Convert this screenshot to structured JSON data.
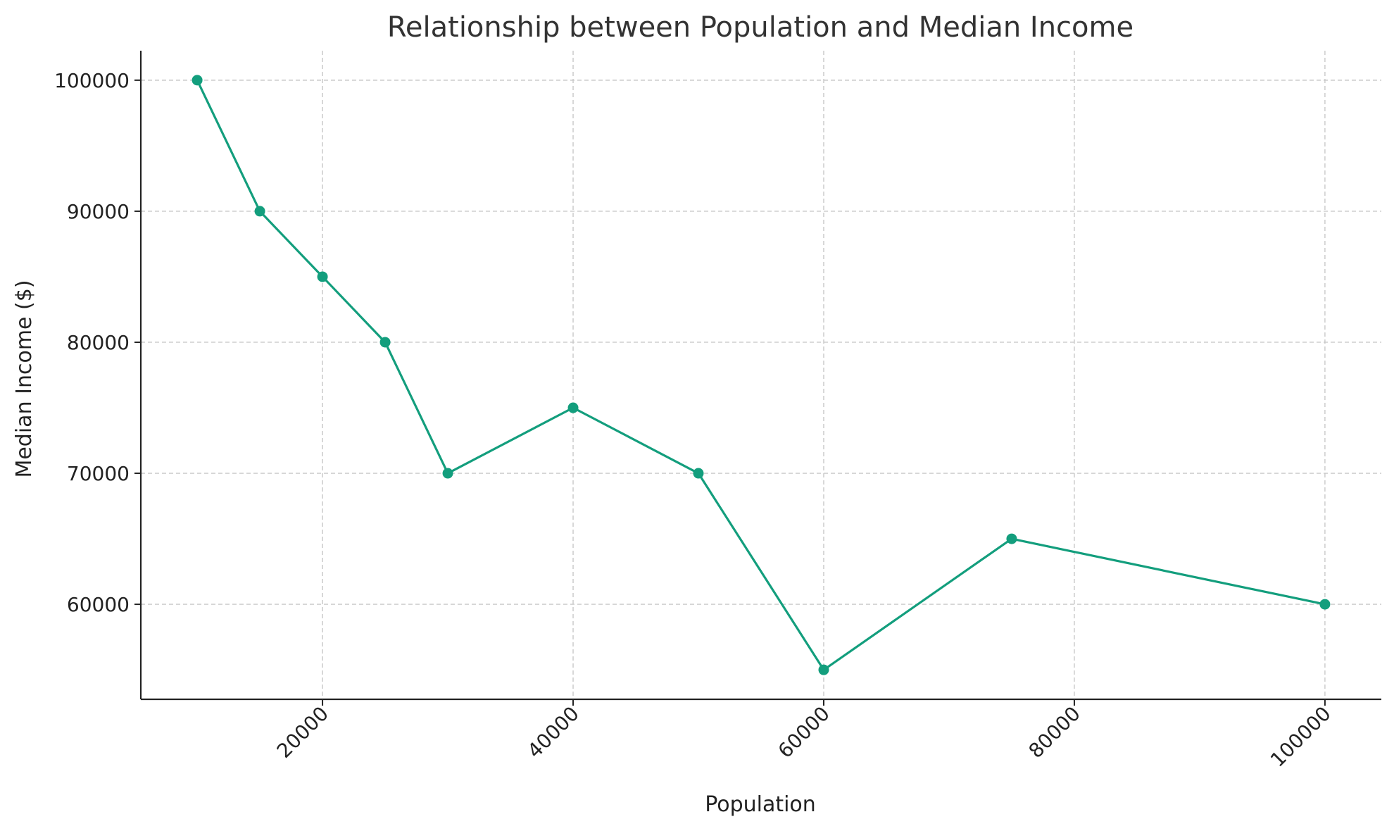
{
  "chart_data": {
    "type": "line",
    "title": "Relationship between Population and Median Income",
    "xlabel": "Population",
    "ylabel": "Median Income ($)",
    "x_ticks": [
      20000,
      40000,
      60000,
      80000,
      100000
    ],
    "y_ticks": [
      60000,
      70000,
      80000,
      90000,
      100000
    ],
    "xlim": [
      5500,
      104500
    ],
    "ylim": [
      52750,
      102250
    ],
    "grid": true,
    "legend": "none",
    "series": [
      {
        "color": "#139e7d",
        "x": [
          10000,
          15000,
          20000,
          25000,
          30000,
          40000,
          50000,
          60000,
          75000,
          100000
        ],
        "y": [
          100000,
          90000,
          85000,
          80000,
          70000,
          75000,
          70000,
          55000,
          65000,
          60000
        ]
      }
    ]
  }
}
